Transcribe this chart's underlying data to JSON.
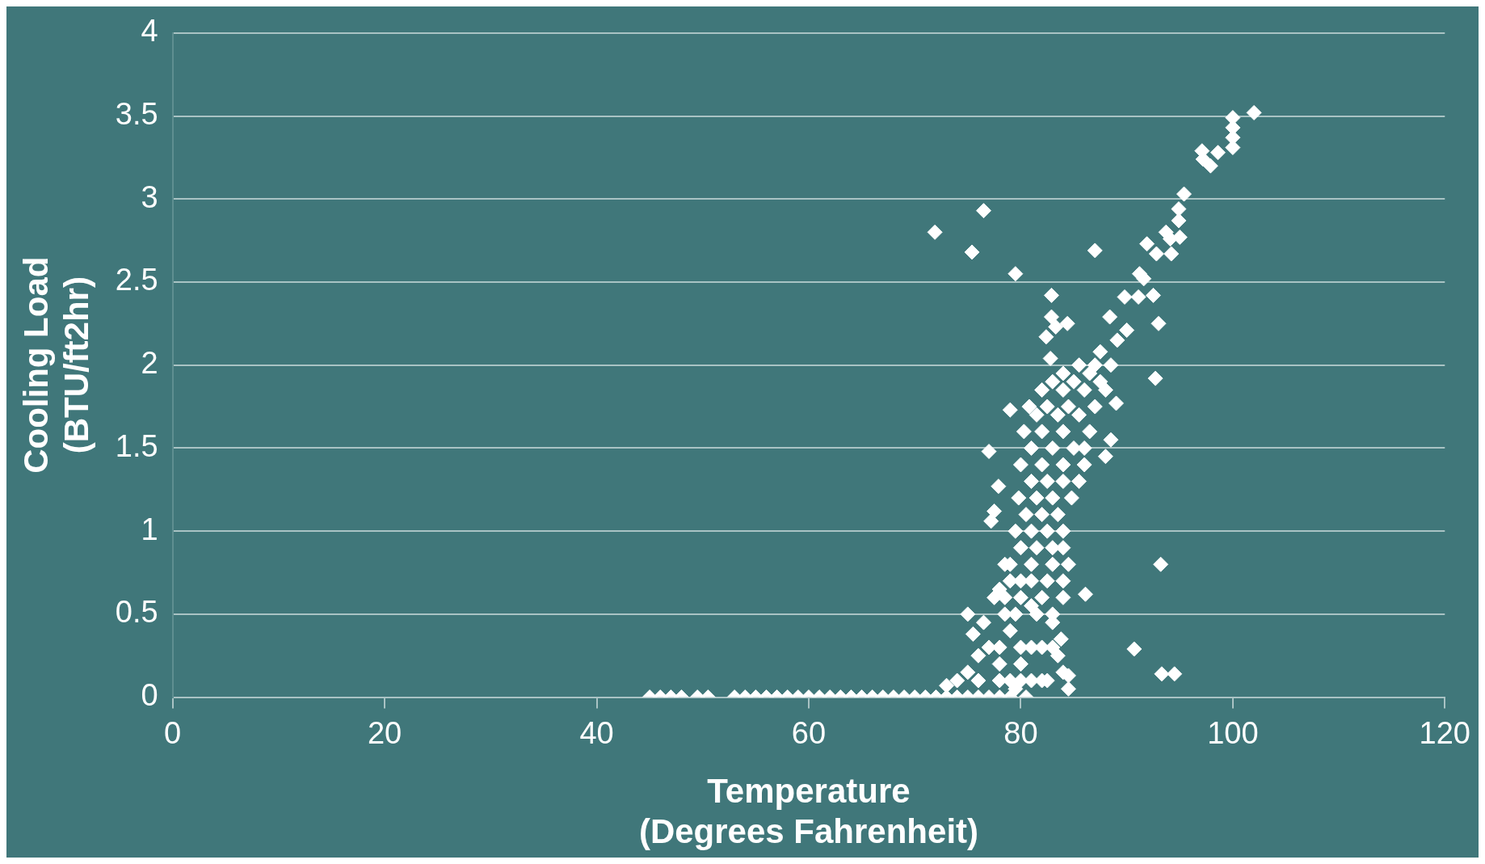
{
  "chart_data": {
    "type": "scatter",
    "xlabel": "Temperature\n(Degrees Fahrenheit)",
    "ylabel": "Cooling Load\n(BTU/ft2hr)",
    "xlim": [
      0,
      120
    ],
    "xticks": [
      0,
      20,
      40,
      60,
      80,
      100,
      120
    ],
    "ylim": [
      0,
      4
    ],
    "yticks": [
      0,
      0.5,
      1,
      1.5,
      2,
      2.5,
      3,
      3.5,
      4
    ],
    "grid": "y",
    "marker": "diamond",
    "legend": false,
    "series": [
      {
        "color": "#ffffff",
        "x": [
          45,
          46,
          47,
          48,
          49.5,
          50.5,
          53,
          54,
          55,
          56,
          57,
          58,
          59,
          60,
          61,
          62,
          63,
          64,
          65,
          66,
          67,
          68,
          69,
          70,
          71,
          72,
          73,
          74,
          75,
          76,
          77,
          78,
          79,
          73,
          74,
          75,
          75.5,
          75,
          76,
          76.5,
          77,
          77.5,
          78,
          78,
          78.5,
          78.5,
          79,
          79,
          79.5,
          80,
          80.5,
          81,
          82,
          82.5,
          83,
          83.5,
          84,
          84.5,
          84.5,
          83.8,
          80,
          81,
          78.5,
          80,
          82,
          84,
          79,
          81,
          83,
          84.5,
          79.5,
          81,
          82.5,
          84,
          79.8,
          81.5,
          83,
          84.8,
          80,
          82,
          84,
          86,
          80.3,
          82,
          84,
          86.5,
          80.8,
          82.5,
          84.5,
          87,
          83,
          85,
          87.5,
          85.5,
          87,
          88.5,
          88,
          88.5,
          89,
          79,
          71.9,
          76.5,
          75.4,
          79.5,
          87,
          82.9,
          77,
          77.9,
          77.5,
          77.2,
          93.2,
          90.7,
          93.3,
          94.5,
          86.1,
          92.7,
          93,
          102,
          100,
          100,
          100,
          100,
          98.6,
          97.1,
          97.2,
          97.9,
          95.4,
          94.9,
          94.9,
          93.7,
          95,
          94.1,
          94.2,
          91.9,
          92.8,
          91.2,
          91.6,
          92.5,
          91.1,
          89.8,
          88.4,
          90,
          89.1,
          87.5,
          82.9,
          83.3,
          84.4,
          82.4,
          82.8,
          76,
          78,
          80,
          82,
          78,
          80,
          81,
          83,
          79.5,
          81.5,
          83,
          79,
          81,
          82.5,
          84,
          80,
          81.5,
          83,
          84,
          80.5,
          82,
          83.5,
          81,
          82.5,
          84,
          85.5,
          81,
          83,
          85,
          86,
          81.5,
          83.5,
          85.5,
          82,
          84,
          86,
          88,
          84,
          86.5
        ],
        "values": [
          0,
          0,
          0,
          0,
          0,
          0,
          0,
          0,
          0,
          0,
          0,
          0,
          0,
          0,
          0,
          0,
          0,
          0,
          0,
          0,
          0,
          0,
          0,
          0,
          0,
          0,
          0,
          0,
          0,
          0,
          0,
          0,
          0,
          0.07,
          0.1,
          0.15,
          0.38,
          0.5,
          0.25,
          0.45,
          0.3,
          0.6,
          0.2,
          0.65,
          0.5,
          0.8,
          0.4,
          0.1,
          0.05,
          0.2,
          0,
          0.1,
          0.3,
          0.1,
          0.45,
          0.25,
          0.15,
          0.05,
          0.13,
          0.35,
          0.7,
          0.55,
          0.6,
          0.6,
          0.6,
          0.6,
          0.8,
          0.8,
          0.8,
          0.8,
          1,
          1,
          1,
          1,
          1.2,
          1.2,
          1.2,
          1.2,
          1.4,
          1.4,
          1.4,
          1.4,
          1.6,
          1.6,
          1.6,
          1.6,
          1.75,
          1.75,
          1.75,
          1.75,
          1.9,
          1.9,
          1.9,
          2,
          2,
          2,
          1.45,
          1.55,
          1.77,
          1.73,
          2.8,
          2.93,
          2.68,
          2.55,
          2.69,
          2.42,
          1.48,
          1.27,
          1.12,
          1.06,
          0.8,
          0.29,
          0.14,
          0.14,
          0.62,
          1.92,
          2.25,
          3.52,
          3.49,
          3.43,
          3.37,
          3.31,
          3.28,
          3.29,
          3.24,
          3.2,
          3.03,
          2.94,
          2.87,
          2.8,
          2.77,
          2.76,
          2.67,
          2.73,
          2.67,
          2.55,
          2.52,
          2.42,
          2.41,
          2.41,
          2.29,
          2.21,
          2.15,
          2.08,
          2.29,
          2.23,
          2.25,
          2.17,
          2.04,
          0.1,
          0.1,
          0.1,
          0.1,
          0.3,
          0.3,
          0.3,
          0.3,
          0.5,
          0.5,
          0.5,
          0.7,
          0.7,
          0.7,
          0.7,
          0.9,
          0.9,
          0.9,
          0.9,
          1.1,
          1.1,
          1.1,
          1.3,
          1.3,
          1.3,
          1.3,
          1.5,
          1.5,
          1.5,
          1.5,
          1.7,
          1.7,
          1.7,
          1.85,
          1.85,
          1.85,
          1.85,
          1.95,
          1.95
        ]
      }
    ]
  }
}
